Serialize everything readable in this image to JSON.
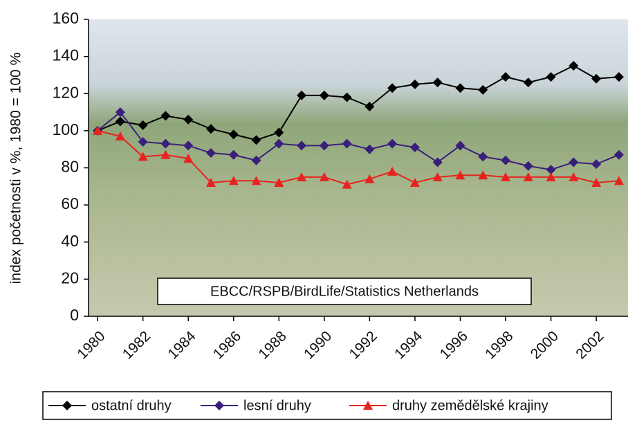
{
  "chart_data": {
    "type": "line",
    "y_label": "index početnosti v %, 1980 = 100 %",
    "annotation": "EBCC/RSPB/BirdLife/Statistics Netherlands",
    "x": [
      1980,
      1981,
      1982,
      1983,
      1984,
      1985,
      1986,
      1987,
      1988,
      1989,
      1990,
      1991,
      1992,
      1993,
      1994,
      1995,
      1996,
      1997,
      1998,
      1999,
      2000,
      2001,
      2002,
      2003
    ],
    "xlim": [
      1979.6,
      2003.4
    ],
    "xticks": [
      1980,
      1982,
      1984,
      1986,
      1988,
      1990,
      1992,
      1994,
      1996,
      1998,
      2000,
      2002
    ],
    "ylim": [
      0,
      160
    ],
    "yticks": [
      0,
      20,
      40,
      60,
      80,
      100,
      120,
      140,
      160
    ],
    "grid": false,
    "legend": "bottom",
    "series": [
      {
        "name": "ostatní druhy",
        "color": "#000000",
        "marker": "diamond",
        "values": [
          100,
          105,
          103,
          108,
          106,
          101,
          98,
          95,
          99,
          119,
          119,
          118,
          113,
          123,
          125,
          126,
          123,
          122,
          129,
          126,
          129,
          135,
          128,
          129
        ]
      },
      {
        "name": "lesní druhy",
        "color": "#3a1f7a",
        "marker": "diamond",
        "values": [
          100,
          110,
          94,
          93,
          92,
          88,
          87,
          84,
          93,
          92,
          92,
          93,
          90,
          93,
          91,
          83,
          92,
          86,
          84,
          81,
          79,
          83,
          82,
          87
        ]
      },
      {
        "name": "druhy zemědělské krajiny",
        "color": "#e8231f",
        "marker": "triangle",
        "values": [
          100,
          97,
          86,
          87,
          85,
          72,
          73,
          73,
          72,
          75,
          75,
          71,
          74,
          78,
          72,
          75,
          76,
          76,
          75,
          75,
          75,
          75,
          72,
          73
        ]
      }
    ]
  }
}
